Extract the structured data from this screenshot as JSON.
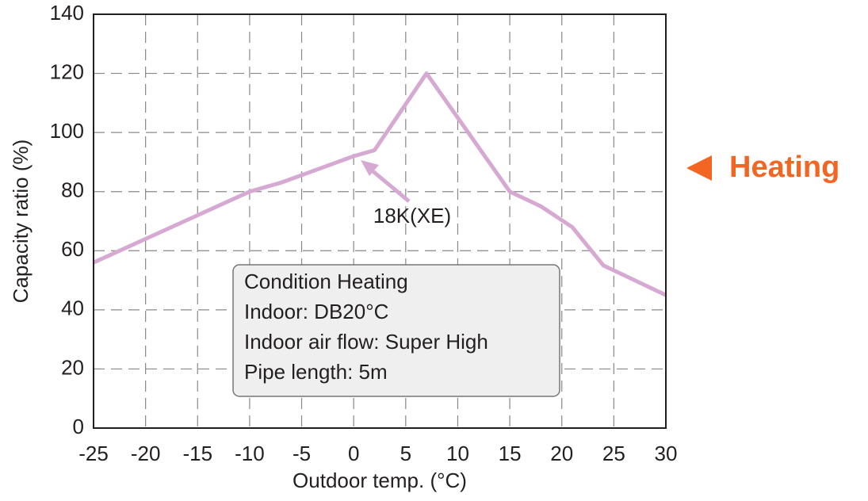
{
  "chart_data": {
    "type": "line",
    "xlabel": "Outdoor temp. (°C)",
    "ylabel": "Capacity ratio (%)",
    "x": [
      -25,
      -10,
      -7,
      0,
      2,
      7,
      15,
      18,
      21,
      24,
      30
    ],
    "series": [
      {
        "name": "18K(XE)",
        "color": "#d6a9d3",
        "values": [
          56,
          80,
          83,
          92,
          94,
          120,
          80,
          75,
          68,
          55,
          45
        ]
      }
    ],
    "xlim": [
      -25,
      30
    ],
    "xticks": [
      -25,
      -20,
      -15,
      -10,
      -5,
      0,
      5,
      10,
      15,
      20,
      25,
      30
    ],
    "ylim": [
      0,
      140
    ],
    "yticks": [
      0,
      20,
      40,
      60,
      80,
      100,
      120,
      140
    ],
    "grid": true,
    "annotations": [
      "Condition Heating",
      "Indoor: DB20°C",
      "Indoor air flow: Super High",
      "Pipe length: 5m"
    ],
    "side_label": "Heating",
    "side_label_color": "#f26522"
  }
}
